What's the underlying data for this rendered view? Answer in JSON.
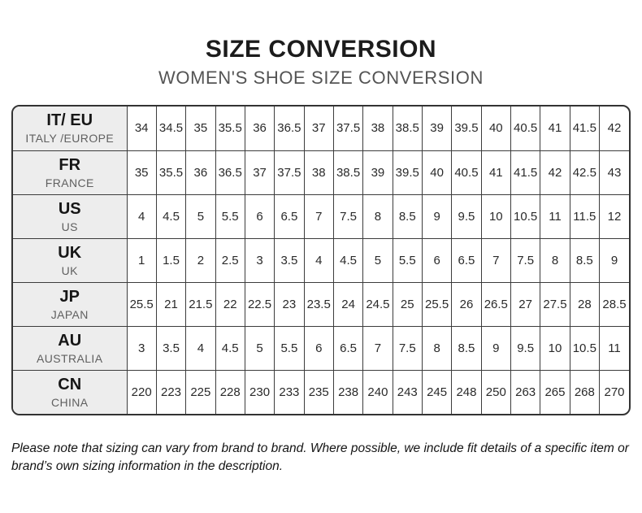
{
  "header": {
    "title": "SIZE CONVERSION",
    "subtitle": "WOMEN'S SHOE SIZE CONVERSION"
  },
  "table": {
    "type": "table",
    "label_column": {
      "code_header": "",
      "region_header": ""
    },
    "rows": [
      {
        "code": "IT/ EU",
        "region": "ITALY /EUROPE",
        "sizes": [
          "34",
          "34.5",
          "35",
          "35.5",
          "36",
          "36.5",
          "37",
          "37.5",
          "38",
          "38.5",
          "39",
          "39.5",
          "40",
          "40.5",
          "41",
          "41.5",
          "42"
        ]
      },
      {
        "code": "FR",
        "region": "FRANCE",
        "sizes": [
          "35",
          "35.5",
          "36",
          "36.5",
          "37",
          "37.5",
          "38",
          "38.5",
          "39",
          "39.5",
          "40",
          "40.5",
          "41",
          "41.5",
          "42",
          "42.5",
          "43"
        ]
      },
      {
        "code": "US",
        "region": "US",
        "sizes": [
          "4",
          "4.5",
          "5",
          "5.5",
          "6",
          "6.5",
          "7",
          "7.5",
          "8",
          "8.5",
          "9",
          "9.5",
          "10",
          "10.5",
          "11",
          "11.5",
          "12"
        ]
      },
      {
        "code": "UK",
        "region": "UK",
        "sizes": [
          "1",
          "1.5",
          "2",
          "2.5",
          "3",
          "3.5",
          "4",
          "4.5",
          "5",
          "5.5",
          "6",
          "6.5",
          "7",
          "7.5",
          "8",
          "8.5",
          "9"
        ]
      },
      {
        "code": "JP",
        "region": "JAPAN",
        "sizes": [
          "25.5",
          "21",
          "21.5",
          "22",
          "22.5",
          "23",
          "23.5",
          "24",
          "24.5",
          "25",
          "25.5",
          "26",
          "26.5",
          "27",
          "27.5",
          "28",
          "28.5"
        ]
      },
      {
        "code": "AU",
        "region": "AUSTRALIA",
        "sizes": [
          "3",
          "3.5",
          "4",
          "4.5",
          "5",
          "5.5",
          "6",
          "6.5",
          "7",
          "7.5",
          "8",
          "8.5",
          "9",
          "9.5",
          "10",
          "10.5",
          "11"
        ]
      },
      {
        "code": "CN",
        "region": "CHINA",
        "sizes": [
          "220",
          "223",
          "225",
          "228",
          "230",
          "233",
          "235",
          "238",
          "240",
          "243",
          "245",
          "248",
          "250",
          "263",
          "265",
          "268",
          "270"
        ]
      }
    ]
  },
  "note": "Please note that sizing can vary from brand to brand. Where possible, we include fit details of a specific item or brand’s own sizing information in the description.",
  "colors": {
    "title": "#1c1c1c",
    "subtitle": "#545454",
    "border": "#333333",
    "cell_border": "#3c3c3c",
    "label_cell_bg": "#ededed",
    "label_sub_text": "#606060",
    "data_text": "#2a2a2a"
  }
}
